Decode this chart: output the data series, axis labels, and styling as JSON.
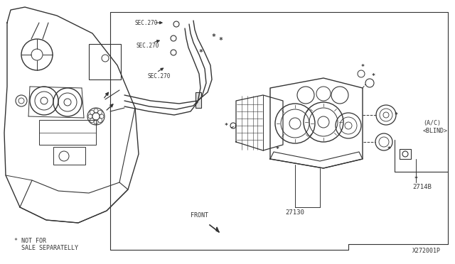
{
  "bg_color": "#ffffff",
  "line_color": "#333333",
  "text_color": "#333333",
  "diagram_id": "X272001P",
  "labels": {
    "front": "FRONT",
    "27130": "27130",
    "2714B": "2714B",
    "ac_blind": "(A/C)\n<BLIND>",
    "sec270_1": "SEC.270",
    "sec270_2": "SEC.270",
    "sec270_3": "SEC.270",
    "not_for_sale_1": "* NOT FOR",
    "not_for_sale_2": "  SALE SEPARATELLY"
  },
  "border_color": "#555555"
}
